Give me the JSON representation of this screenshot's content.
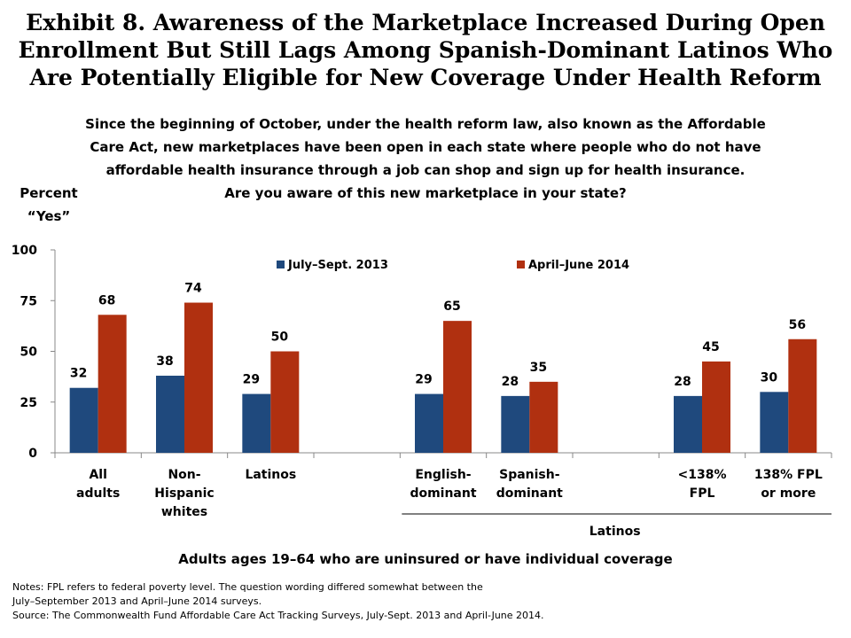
{
  "title_lines": [
    "Exhibit 8. Awareness of the Marketplace Increased During Open",
    "Enrollment But Still Lags Among Spanish-Dominant Latinos Who",
    "Are Potentially Eligible for New Coverage Under Health Reform"
  ],
  "question_lines": [
    "Since the beginning of October, under the health reform law, also known as the Affordable",
    "Care Act, new marketplaces have been open in each state where people who do not have",
    "affordable health insurance through a job can shop and sign up for health insurance.",
    "Are you aware of this new marketplace in your state?"
  ],
  "ylabel_lines": [
    "Percent",
    "“Yes”"
  ],
  "chart_data": {
    "type": "bar",
    "groups": [
      {
        "label": [
          "All",
          "adults"
        ],
        "values": [
          32,
          68
        ]
      },
      {
        "label": [
          "Non-",
          "Hispanic",
          "whites"
        ],
        "values": [
          38,
          74
        ]
      },
      {
        "label": [
          "Latinos"
        ],
        "values": [
          29,
          50
        ]
      },
      {
        "label": [],
        "values": [
          null,
          null
        ]
      },
      {
        "label": [
          "English-",
          "dominant"
        ],
        "values": [
          29,
          65
        ]
      },
      {
        "label": [
          "Spanish-",
          "dominant"
        ],
        "values": [
          28,
          35
        ]
      },
      {
        "label": [],
        "values": [
          null,
          null
        ]
      },
      {
        "label": [
          "<138%",
          "FPL"
        ],
        "values": [
          28,
          45
        ]
      },
      {
        "label": [
          "138% FPL",
          "or more"
        ],
        "values": [
          30,
          56
        ]
      }
    ],
    "series": [
      {
        "name": "July–Sept. 2013",
        "color": "#1f497d"
      },
      {
        "name": "April–June 2014",
        "color": "#b03010"
      }
    ],
    "yticks": [
      0,
      25,
      50,
      75,
      100
    ],
    "ylim": [
      0,
      100
    ],
    "group_label": "Latinos",
    "xlabel": "Adults ages 19–64 who are uninsured or have individual coverage",
    "legend_position": "top"
  },
  "notes_lines": [
    "Notes: FPL refers to federal poverty level. The question wording differed somewhat between the",
    "July–September 2013 and April–June 2014 surveys.",
    "Source: The Commonwealth Fund Affordable Care Act Tracking Surveys, July-Sept. 2013 and April-June 2014."
  ]
}
